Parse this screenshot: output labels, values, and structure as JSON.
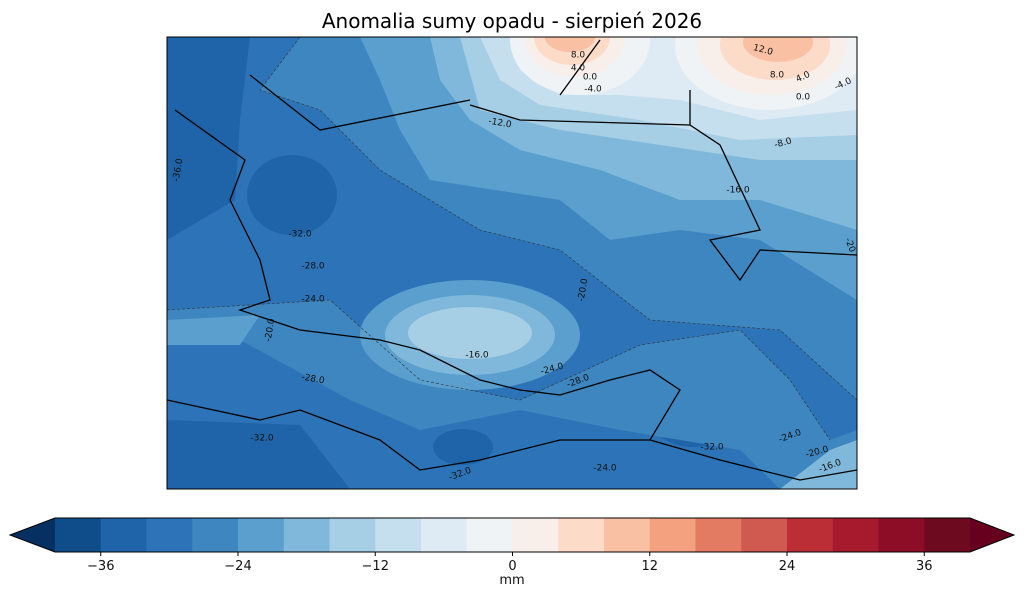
{
  "title": "Anomalia sumy opadu - sierpień 2026",
  "map": {
    "contour_labels": [
      "8.0",
      "4.0",
      "0.0",
      "-4.0",
      "12.0",
      "8.0",
      "4.0",
      "0.0",
      "-4.0",
      "-12.0",
      "-8.0",
      "-16.0",
      "-20",
      "-36.0",
      "-32.0",
      "-28.0",
      "-24.0",
      "-20.0",
      "-20.0",
      "-16.0",
      "-24.0",
      "-28.0",
      "-28.0",
      "-32.0",
      "-32.0",
      "-24.0",
      "-20.0",
      "-16.0",
      "-24.0",
      "-32.0"
    ]
  },
  "colorbar": {
    "label": "mm",
    "clim": [
      -40,
      40
    ],
    "colors": [
      "#0f4c8a",
      "#1f63a8",
      "#2c74b7",
      "#3d86c0",
      "#5a9fcd",
      "#7fb8da",
      "#a6cee4",
      "#c6dfee",
      "#deebf4",
      "#eff3f5",
      "#f8efea",
      "#fcdbc8",
      "#f9c0a3",
      "#f3a17f",
      "#e27b62",
      "#d05a4f",
      "#bb2e36",
      "#a7192d",
      "#8c0d25",
      "#6e0a20"
    ],
    "extend_colors": [
      "#053061",
      "#67001f"
    ],
    "ticks": [
      {
        "value": -36,
        "label": "−36"
      },
      {
        "value": -24,
        "label": "−24"
      },
      {
        "value": -12,
        "label": "−12"
      },
      0,
      12,
      24,
      36
    ]
  }
}
